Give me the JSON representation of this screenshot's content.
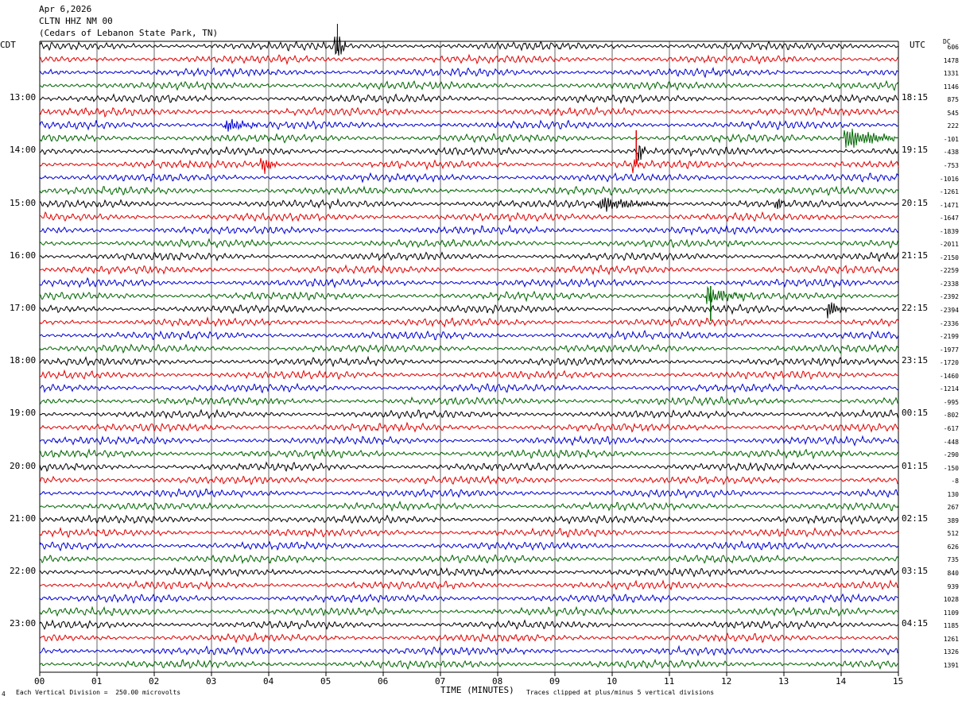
{
  "header": {
    "date": "Apr 6,2026",
    "station": "CLTN HHZ NM 00",
    "location": "(Cedars of Lebanon State Park, TN)"
  },
  "left_zone": "CDT",
  "right_zone": "UTC",
  "dc_label": "DC",
  "footer": {
    "scale_note": "Each Vertical Division =  250.00 microvolts",
    "clip_note": "Traces clipped at plus/minus 5 vertical divisions",
    "mark": "4"
  },
  "colors": {
    "trace_cycle": [
      "#000000",
      "#e00000",
      "#0000d0",
      "#006400"
    ],
    "grid": "#000000"
  },
  "chart_data": {
    "type": "line",
    "title": "Apr 6,2026 CLTN HHZ NM 00 (Cedars of Lebanon State Park, TN)",
    "xlabel": "TIME (MINUTES)",
    "xlim": [
      0,
      15
    ],
    "x_ticks": [
      "00",
      "01",
      "02",
      "03",
      "04",
      "05",
      "06",
      "07",
      "08",
      "09",
      "10",
      "11",
      "12",
      "13",
      "14",
      "15"
    ],
    "grid": true,
    "left_labels": [
      "13:00",
      "14:00",
      "15:00",
      "16:00",
      "17:00",
      "18:00",
      "19:00",
      "20:00",
      "21:00",
      "22:00",
      "23:00"
    ],
    "right_labels": [
      "18:15",
      "19:15",
      "20:15",
      "21:15",
      "22:15",
      "23:15",
      "00:15",
      "01:15",
      "02:15",
      "03:15",
      "04:15"
    ],
    "dc_offsets": [
      "606",
      "1478",
      "1331",
      "1146",
      "875",
      "545",
      "222",
      "-101",
      "-438",
      "-753",
      "-1016",
      "-1261",
      "-1471",
      "-1647",
      "-1839",
      "-2011",
      "-2150",
      "-2259",
      "-2338",
      "-2392",
      "-2394",
      "-2336",
      "-2199",
      "-1977",
      "-1720",
      "-1460",
      "-1214",
      "-995",
      "-802",
      "-617",
      "-448",
      "-290",
      "-150",
      "-8",
      "130",
      "267",
      "389",
      "512",
      "626",
      "735",
      "840",
      "939",
      "1028",
      "1109",
      "1185",
      "1261",
      "1326",
      "1391"
    ],
    "trace_count": 48,
    "trace_colors": [
      "black",
      "red",
      "blue",
      "green"
    ],
    "events": [
      {
        "trace": 0,
        "minute": 5.2,
        "amp": 7,
        "dur": 0.15
      },
      {
        "trace": 6,
        "minute": 3.3,
        "amp": 2.5,
        "dur": 0.5
      },
      {
        "trace": 7,
        "minute": 14.1,
        "amp": 4,
        "dur": 0.9
      },
      {
        "trace": 8,
        "minute": 10.5,
        "amp": 3,
        "dur": 0.1
      },
      {
        "trace": 9,
        "minute": 3.9,
        "amp": 3,
        "dur": 0.3
      },
      {
        "trace": 9,
        "minute": 10.4,
        "amp": 3,
        "dur": 0.1
      },
      {
        "trace": 12,
        "minute": 9.8,
        "amp": 2.2,
        "dur": 1.2
      },
      {
        "trace": 12,
        "minute": 12.9,
        "amp": 2,
        "dur": 0.2
      },
      {
        "trace": 19,
        "minute": 11.7,
        "amp": 3.5,
        "dur": 0.6
      },
      {
        "trace": 20,
        "minute": 13.8,
        "amp": 3,
        "dur": 0.3
      }
    ]
  }
}
